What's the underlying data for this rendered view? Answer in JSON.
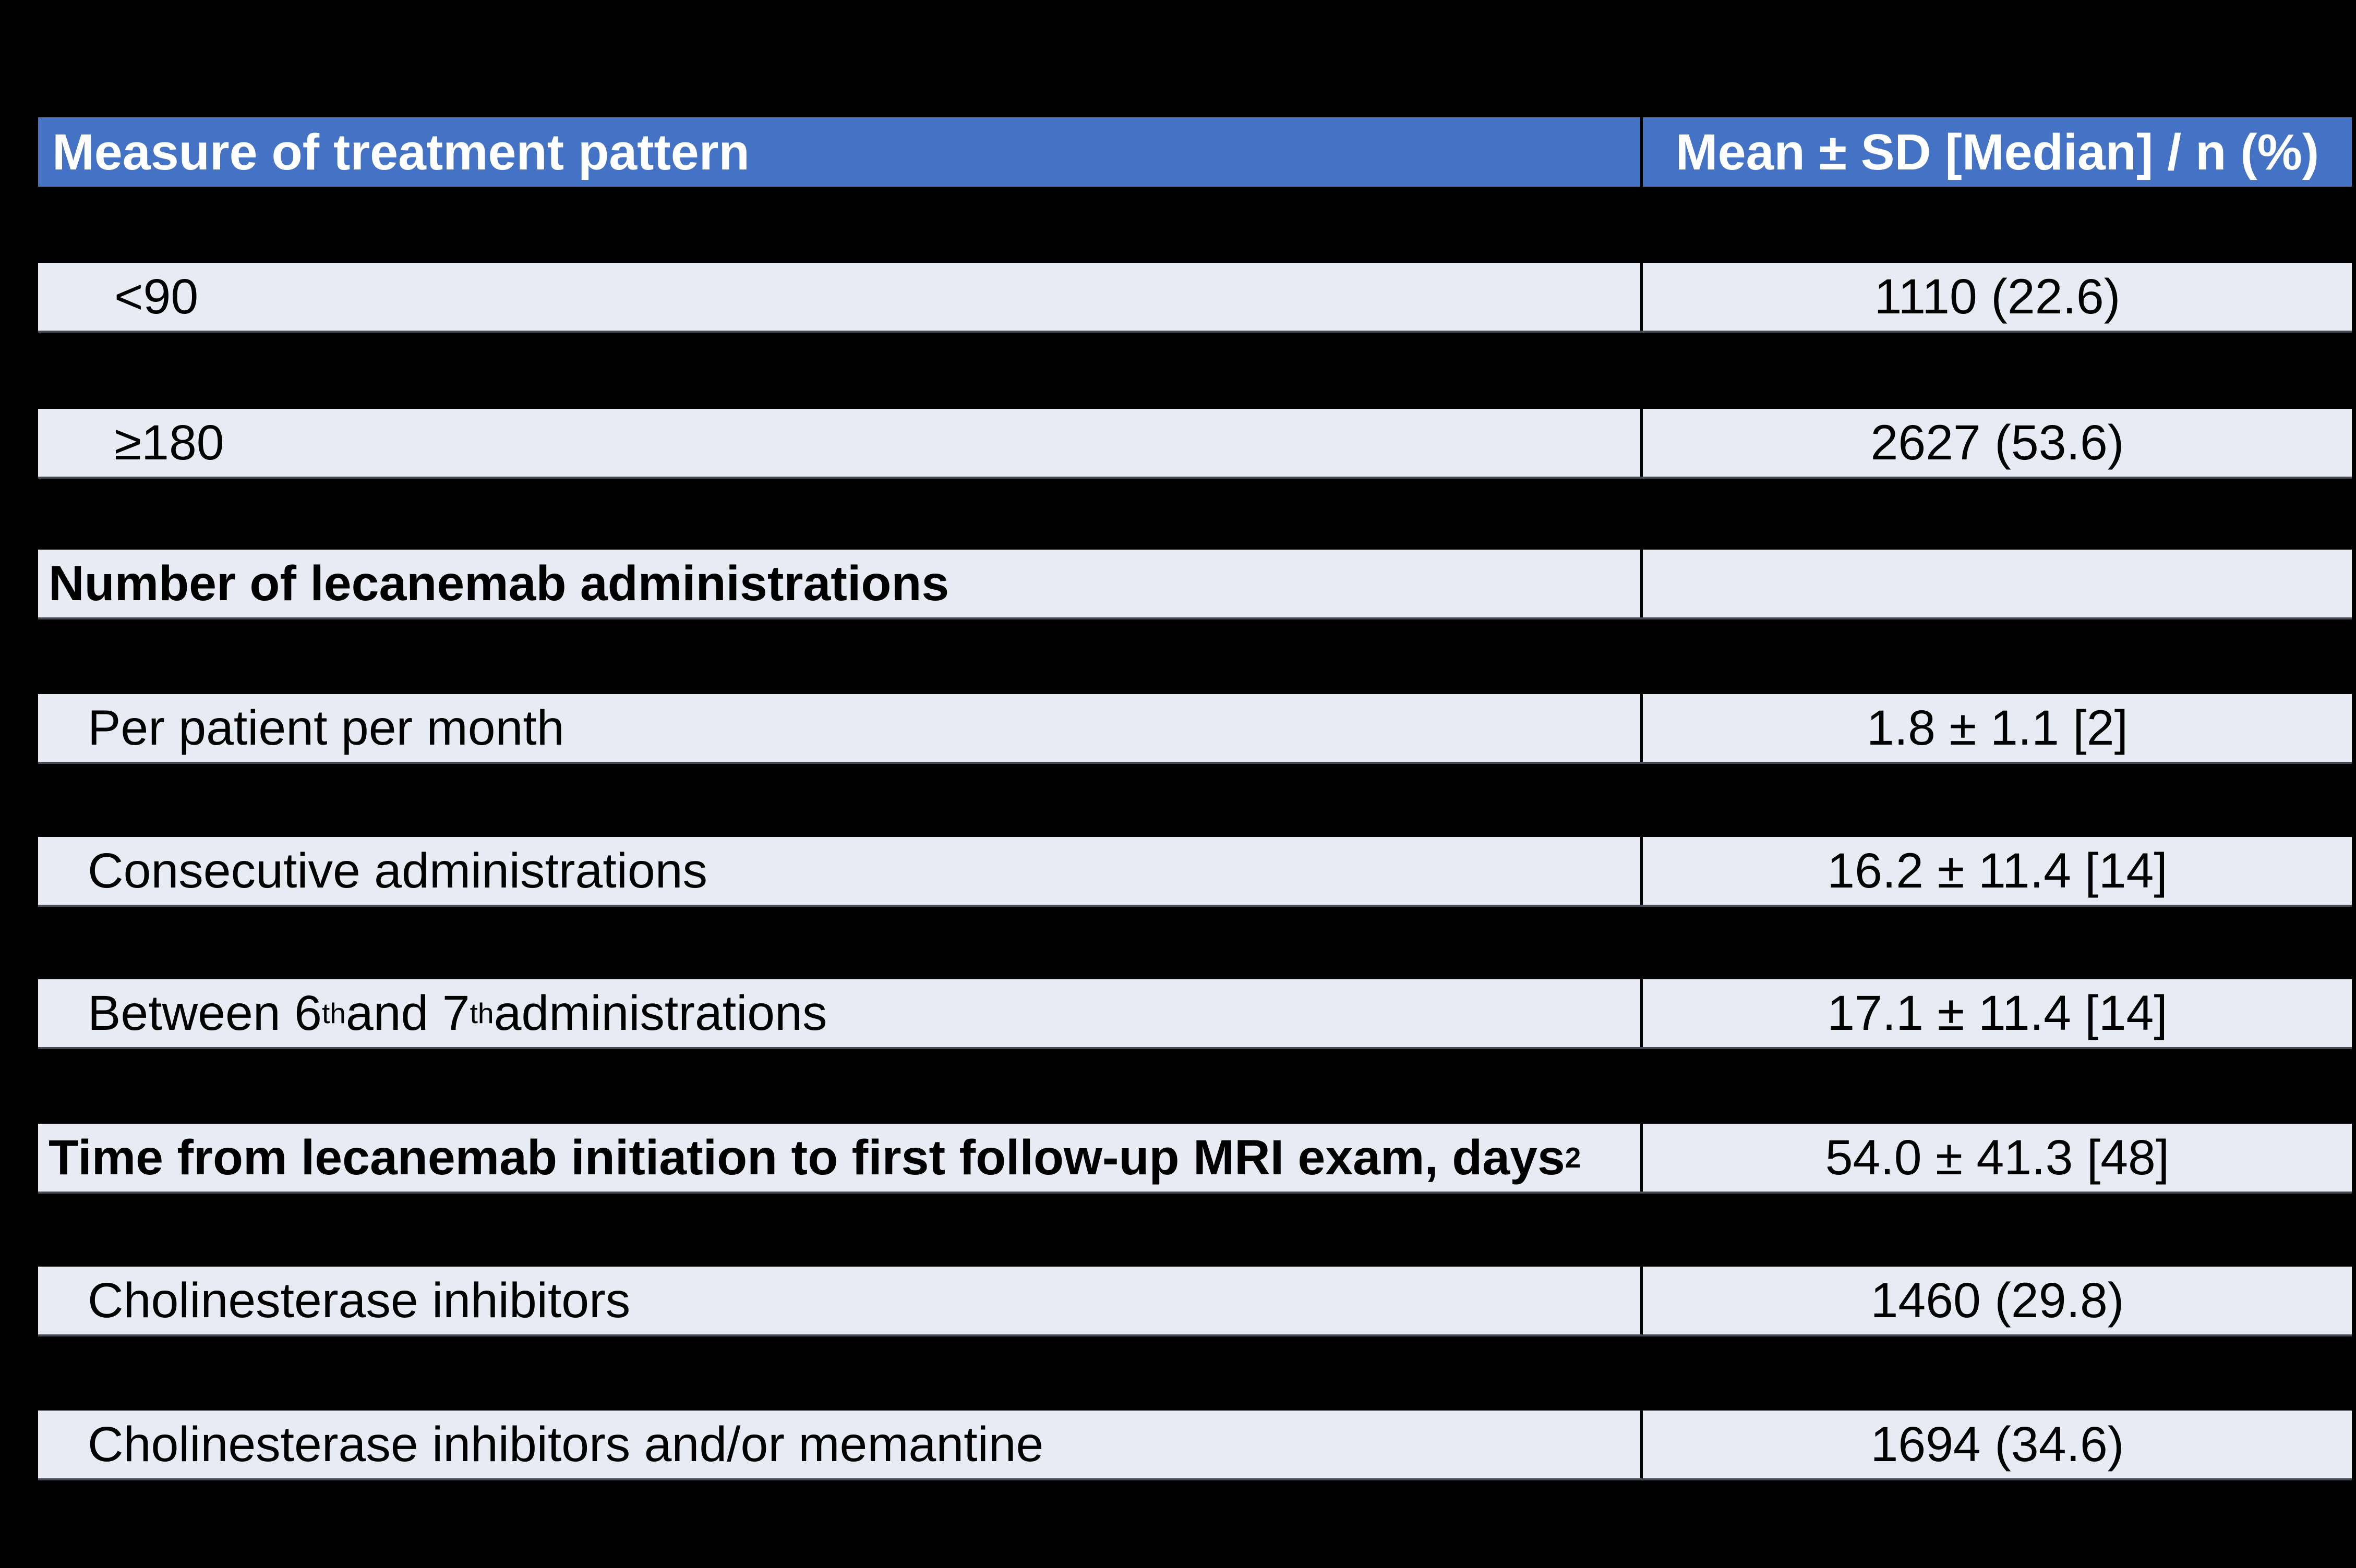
{
  "colors": {
    "page_background": "#000000",
    "header_background": "#4472C4",
    "header_text": "#FFFFFF",
    "row_background": "#E9EBF4",
    "row_text": "#000000",
    "grid_line": "#000000"
  },
  "table": {
    "header": {
      "col1": "Measure of treatment pattern",
      "col2": "Mean ± SD [Median] / n (%)"
    },
    "rows": [
      {
        "indent": 2,
        "bold": false,
        "label_parts": [
          {
            "t": "<90"
          }
        ],
        "value": "1110 (22.6)"
      },
      {
        "indent": 2,
        "bold": false,
        "label_parts": [
          {
            "t": "≥180"
          }
        ],
        "value": "2627 (53.6)"
      },
      {
        "indent": 0,
        "bold": true,
        "label_parts": [
          {
            "t": "Number of lecanemab administrations"
          }
        ],
        "value": ""
      },
      {
        "indent": 1,
        "bold": false,
        "label_parts": [
          {
            "t": "Per patient per month"
          }
        ],
        "value": "1.8 ± 1.1 [2]"
      },
      {
        "indent": 1,
        "bold": false,
        "label_parts": [
          {
            "t": "Consecutive administrations"
          }
        ],
        "value": "16.2 ± 11.4 [14]"
      },
      {
        "indent": 1,
        "bold": false,
        "label_parts": [
          {
            "t": "Between 6"
          },
          {
            "t": "th",
            "sup": true
          },
          {
            "t": " and 7"
          },
          {
            "t": "th",
            "sup": true
          },
          {
            "t": " administrations"
          }
        ],
        "value": "17.1 ± 11.4 [14]"
      },
      {
        "indent": 0,
        "bold": true,
        "label_parts": [
          {
            "t": "Time from lecanemab initiation to first follow-up MRI exam, days"
          },
          {
            "t": "2",
            "sup": true
          }
        ],
        "value": "54.0 ± 41.3 [48]"
      },
      {
        "indent": 1,
        "bold": false,
        "label_parts": [
          {
            "t": "Cholinesterase inhibitors"
          }
        ],
        "value": "1460 (29.8)"
      },
      {
        "indent": 1,
        "bold": false,
        "label_parts": [
          {
            "t": "Cholinesterase inhibitors and/or memantine"
          }
        ],
        "value": "1694 (34.6)"
      }
    ]
  }
}
